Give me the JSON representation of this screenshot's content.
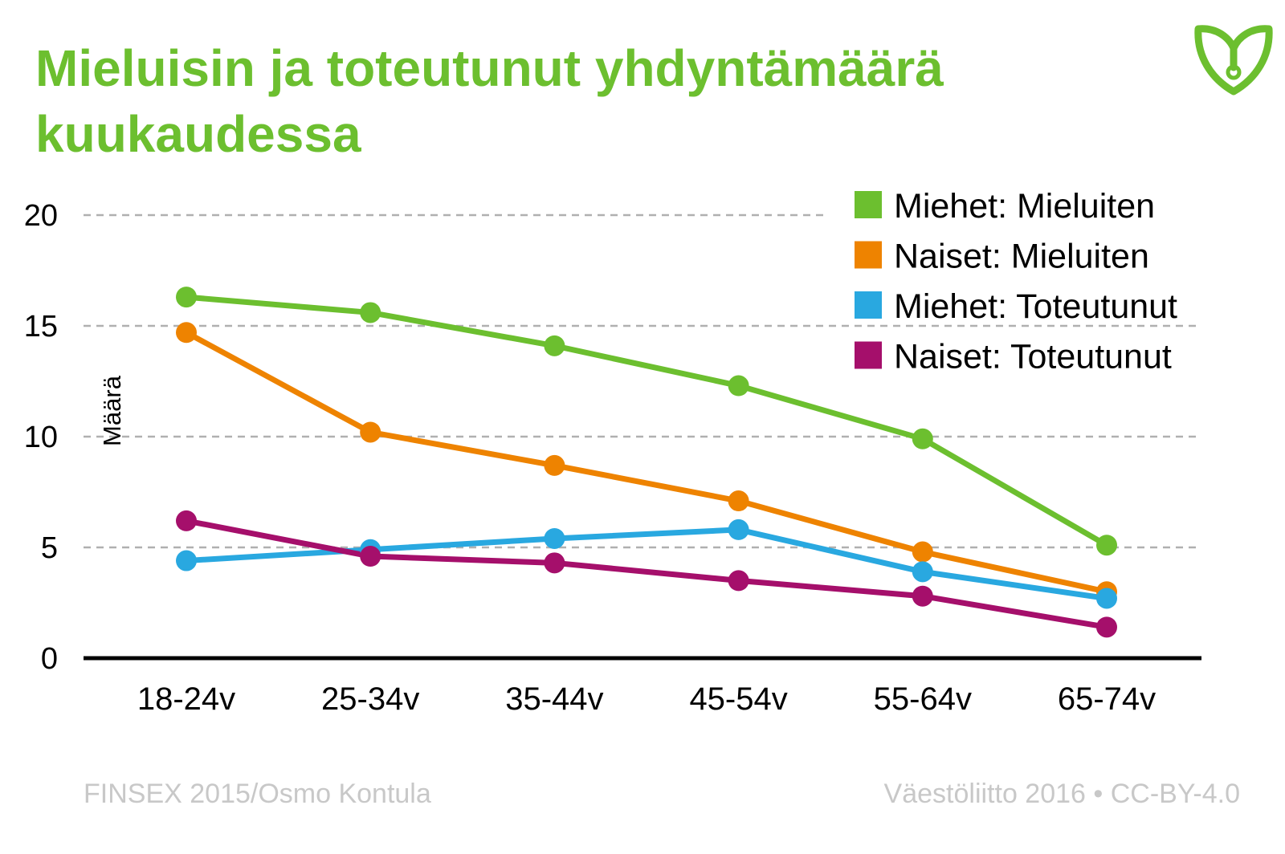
{
  "title": "Mieluisin ja toteutunut yhdyntämäärä kuukaudessa",
  "logo": {
    "icon": "vaestoliitto-logo-icon",
    "color": "#6cbf2f"
  },
  "footer": {
    "source": "FINSEX 2015/Osmo Kontula",
    "credit": "Väestöliitto 2016 • CC-BY-4.0"
  },
  "chart_data": {
    "type": "line",
    "title": "Mieluisin ja toteutunut yhdyntämäärä kuukaudessa",
    "xlabel": "",
    "ylabel": "Määrä",
    "categories": [
      "18-24v",
      "25-34v",
      "35-44v",
      "45-54v",
      "55-64v",
      "65-74v"
    ],
    "ylim": [
      0,
      20
    ],
    "yticks": [
      0,
      5,
      10,
      15,
      20
    ],
    "grid": "horizontal dashed",
    "legend_position": "top-right",
    "series": [
      {
        "name": "Miehet: Mieluiten",
        "color": "#6cbf2f",
        "values": [
          16.3,
          15.6,
          14.1,
          12.3,
          9.9,
          5.1
        ]
      },
      {
        "name": "Naiset: Mieluiten",
        "color": "#ee8300",
        "values": [
          14.7,
          10.2,
          8.7,
          7.1,
          4.8,
          3.0
        ]
      },
      {
        "name": "Miehet: Toteutunut",
        "color": "#29a8e0",
        "values": [
          4.4,
          4.9,
          5.4,
          5.8,
          3.9,
          2.7
        ]
      },
      {
        "name": "Naiset: Toteutunut",
        "color": "#a50f6b",
        "values": [
          6.2,
          4.6,
          4.3,
          3.5,
          2.8,
          1.4
        ]
      }
    ]
  }
}
